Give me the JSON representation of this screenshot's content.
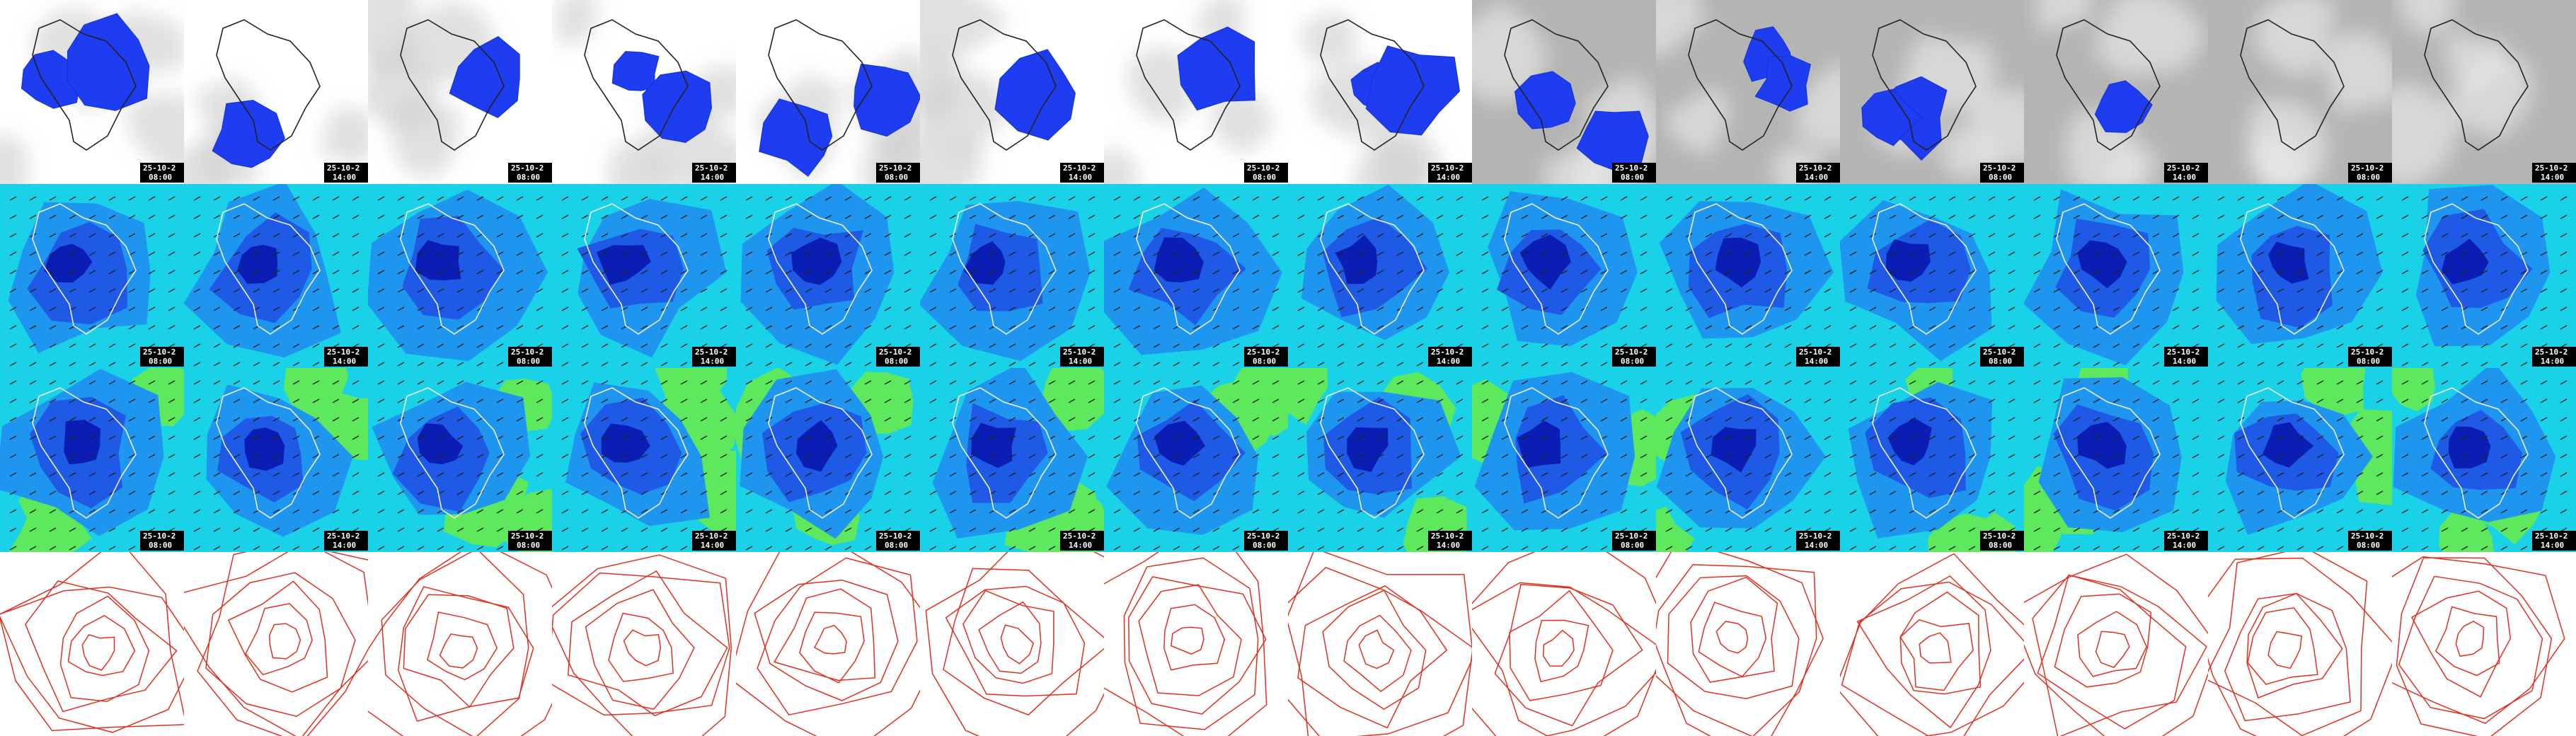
{
  "rows": [
    {
      "cells": [
        {
          "date": "25-10-2",
          "time": "08:00"
        },
        {
          "date": "25-10-2",
          "time": "14:00"
        },
        {
          "date": "25-10-2",
          "time": "08:00"
        },
        {
          "date": "25-10-2",
          "time": "14:00"
        },
        {
          "date": "25-10-2",
          "time": "08:00"
        },
        {
          "date": "25-10-2",
          "time": "14:00"
        },
        {
          "date": "25-10-2",
          "time": "08:00"
        },
        {
          "date": "25-10-2",
          "time": "14:00"
        },
        {
          "date": "25-10-2",
          "time": "08:00"
        },
        {
          "date": "25-10-2",
          "time": "14:00"
        },
        {
          "date": "25-10-2",
          "time": "08:00"
        },
        {
          "date": "25-10-2",
          "time": "14:00"
        },
        {
          "date": "25-10-2",
          "time": "08:00"
        },
        {
          "date": "25-10-2",
          "time": "14:00"
        }
      ]
    },
    {
      "cells": [
        {
          "date": "25-10-2",
          "time": "08:00"
        },
        {
          "date": "25-10-2",
          "time": "14:00"
        },
        {
          "date": "25-10-2",
          "time": "08:00"
        },
        {
          "date": "25-10-2",
          "time": "14:00"
        },
        {
          "date": "25-10-2",
          "time": "08:00"
        },
        {
          "date": "25-10-2",
          "time": "14:00"
        },
        {
          "date": "25-10-2",
          "time": "08:00"
        },
        {
          "date": "25-10-2",
          "time": "14:00"
        },
        {
          "date": "25-10-2",
          "time": "08:00"
        },
        {
          "date": "25-10-2",
          "time": "14:00"
        },
        {
          "date": "25-10-2",
          "time": "08:00"
        },
        {
          "date": "25-10-2",
          "time": "14:00"
        },
        {
          "date": "25-10-2",
          "time": "08:00"
        },
        {
          "date": "25-10-2",
          "time": "14:00"
        }
      ]
    },
    {
      "cells": [
        {
          "date": "25-10-2",
          "time": "08:00"
        },
        {
          "date": "25-10-2",
          "time": "14:00"
        },
        {
          "date": "25-10-2",
          "time": "08:00"
        },
        {
          "date": "25-10-2",
          "time": "14:00"
        },
        {
          "date": "25-10-2",
          "time": "08:00"
        },
        {
          "date": "25-10-2",
          "time": "14:00"
        },
        {
          "date": "25-10-2",
          "time": "08:00"
        },
        {
          "date": "25-10-2",
          "time": "14:00"
        },
        {
          "date": "25-10-2",
          "time": "08:00"
        },
        {
          "date": "25-10-2",
          "time": "14:00"
        },
        {
          "date": "25-10-2",
          "time": "08:00"
        },
        {
          "date": "25-10-2",
          "time": "14:00"
        },
        {
          "date": "25-10-2",
          "time": "08:00"
        },
        {
          "date": "25-10-2",
          "time": "14:00"
        }
      ]
    }
  ]
}
